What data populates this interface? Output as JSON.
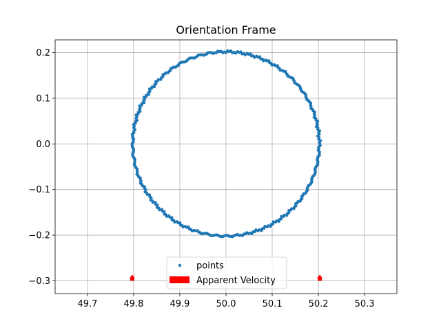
{
  "chart_data": {
    "type": "scatter",
    "title": "Orientation Frame",
    "xlabel": "",
    "ylabel": "",
    "xlim": [
      49.63,
      50.37
    ],
    "ylim": [
      -0.328,
      0.228
    ],
    "x_ticks": [
      49.7,
      49.8,
      49.9,
      50.0,
      50.1,
      50.2,
      50.3
    ],
    "x_tick_labels": [
      "49.7",
      "49.8",
      "49.9",
      "50.0",
      "50.1",
      "50.2",
      "50.3"
    ],
    "y_ticks": [
      0.2,
      0.1,
      0.0,
      -0.1,
      -0.2,
      -0.3
    ],
    "y_tick_labels": [
      "0.2",
      "0.1",
      "0.0",
      "−0.1",
      "−0.2",
      "−0.3"
    ],
    "grid": true,
    "legend_placement": "lower center",
    "series": [
      {
        "name": "points",
        "marker": "circle",
        "color": "#1f77b4",
        "shape": "circle",
        "center": [
          50.0,
          0.0
        ],
        "radius": 0.202,
        "n_points": 360
      }
    ],
    "arrows": {
      "name": "Apparent Velocity",
      "color": "#ff0000",
      "items": [
        {
          "x": 49.797,
          "y": -0.3,
          "dx": 0.0,
          "dy": 0.012
        },
        {
          "x": 50.203,
          "y": -0.3,
          "dx": 0.0,
          "dy": 0.012
        }
      ]
    },
    "legend": [
      "points",
      "Apparent Velocity"
    ]
  }
}
